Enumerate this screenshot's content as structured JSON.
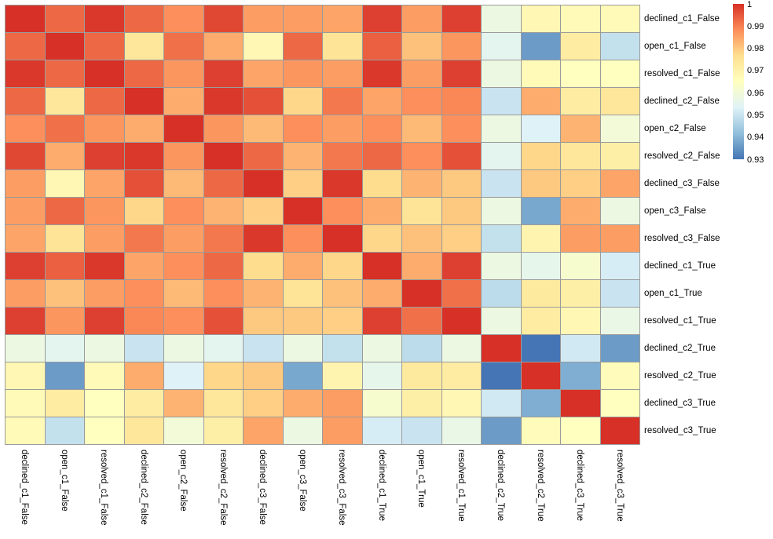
{
  "chart_data": {
    "type": "heatmap",
    "title": "",
    "labels": [
      "declined_c1_False",
      "open_c1_False",
      "resolved_c1_False",
      "declined_c2_False",
      "open_c2_False",
      "resolved_c2_False",
      "declined_c3_False",
      "open_c3_False",
      "resolved_c3_False",
      "declined_c1_True",
      "open_c1_True",
      "resolved_c1_True",
      "declined_c2_True",
      "resolved_c2_True",
      "declined_c3_True",
      "resolved_c3_True"
    ],
    "matrix": [
      [
        1.0,
        0.993,
        0.999,
        0.993,
        0.988,
        0.997,
        0.986,
        0.986,
        0.985,
        0.998,
        0.986,
        0.998,
        0.958,
        0.968,
        0.967,
        0.967
      ],
      [
        0.993,
        1.0,
        0.993,
        0.974,
        0.992,
        0.984,
        0.968,
        0.993,
        0.975,
        0.994,
        0.981,
        0.987,
        0.955,
        0.936,
        0.972,
        0.949
      ],
      [
        0.999,
        0.993,
        1.0,
        0.993,
        0.987,
        0.998,
        0.985,
        0.987,
        0.986,
        0.999,
        0.986,
        0.998,
        0.958,
        0.967,
        0.965,
        0.965
      ],
      [
        0.993,
        0.974,
        0.993,
        1.0,
        0.984,
        0.999,
        0.996,
        0.978,
        0.991,
        0.985,
        0.988,
        0.989,
        0.95,
        0.984,
        0.972,
        0.974
      ],
      [
        0.988,
        0.992,
        0.987,
        0.984,
        1.0,
        0.987,
        0.982,
        0.988,
        0.986,
        0.988,
        0.982,
        0.988,
        0.958,
        0.953,
        0.983,
        0.96
      ],
      [
        0.997,
        0.984,
        0.998,
        0.999,
        0.987,
        1.0,
        0.993,
        0.983,
        0.991,
        0.993,
        0.988,
        0.996,
        0.955,
        0.978,
        0.974,
        0.971
      ],
      [
        0.986,
        0.968,
        0.985,
        0.996,
        0.982,
        0.993,
        1.0,
        0.979,
        0.999,
        0.977,
        0.983,
        0.98,
        0.95,
        0.98,
        0.979,
        0.985
      ],
      [
        0.986,
        0.993,
        0.987,
        0.978,
        0.988,
        0.983,
        0.979,
        1.0,
        0.988,
        0.984,
        0.975,
        0.98,
        0.958,
        0.938,
        0.984,
        0.958
      ],
      [
        0.985,
        0.975,
        0.986,
        0.991,
        0.986,
        0.991,
        0.999,
        0.988,
        1.0,
        0.978,
        0.981,
        0.979,
        0.949,
        0.969,
        0.986,
        0.986
      ],
      [
        0.998,
        0.994,
        0.999,
        0.985,
        0.988,
        0.993,
        0.977,
        0.984,
        0.978,
        1.0,
        0.984,
        0.998,
        0.958,
        0.956,
        0.962,
        0.952
      ],
      [
        0.986,
        0.981,
        0.986,
        0.988,
        0.982,
        0.988,
        0.983,
        0.975,
        0.981,
        0.984,
        1.0,
        0.992,
        0.948,
        0.973,
        0.971,
        0.95
      ],
      [
        0.998,
        0.987,
        0.998,
        0.989,
        0.988,
        0.996,
        0.98,
        0.98,
        0.979,
        0.998,
        0.992,
        1.0,
        0.958,
        0.972,
        0.968,
        0.957
      ],
      [
        0.958,
        0.955,
        0.958,
        0.95,
        0.958,
        0.955,
        0.95,
        0.958,
        0.949,
        0.958,
        0.948,
        0.958,
        1.0,
        0.93,
        0.951,
        0.936
      ],
      [
        0.968,
        0.936,
        0.967,
        0.984,
        0.953,
        0.978,
        0.98,
        0.938,
        0.969,
        0.956,
        0.973,
        0.972,
        0.93,
        1.0,
        0.939,
        0.966
      ],
      [
        0.967,
        0.972,
        0.965,
        0.972,
        0.983,
        0.974,
        0.979,
        0.984,
        0.986,
        0.962,
        0.971,
        0.968,
        0.951,
        0.939,
        1.0,
        0.965
      ],
      [
        0.967,
        0.949,
        0.965,
        0.974,
        0.96,
        0.971,
        0.985,
        0.958,
        0.986,
        0.952,
        0.95,
        0.957,
        0.936,
        0.966,
        0.965,
        1.0
      ]
    ],
    "value_domain": [
      0.93,
      1.0
    ],
    "colormap": {
      "name": "RdYlBu-reversed",
      "stops_low_to_high": [
        "#4575B4",
        "#91BFDB",
        "#E0F3F8",
        "#FFFFBF",
        "#FEE090",
        "#FC8D59",
        "#D73027"
      ]
    },
    "colorbar": {
      "position": "right",
      "tick_labels": [
        "1",
        "0.99",
        "0.98",
        "0.97",
        "0.96",
        "0.95",
        "0.94",
        "0.93"
      ],
      "tick_values": [
        1,
        0.99,
        0.98,
        0.97,
        0.96,
        0.95,
        0.94,
        0.93
      ]
    },
    "grid": {
      "cell_border_color": "#9b9b9b",
      "background_color": "#ffffff"
    },
    "xlabel": "",
    "ylabel": ""
  }
}
